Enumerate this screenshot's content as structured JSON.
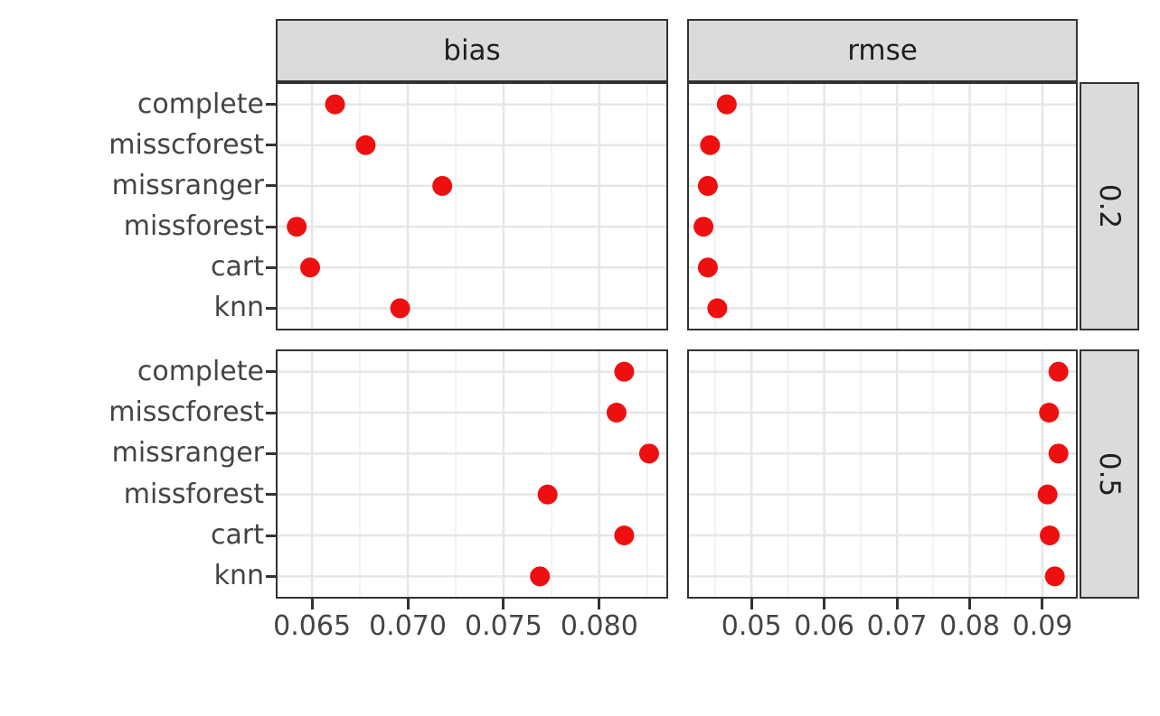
{
  "figure": {
    "background": "#FFFFFF",
    "panel_border_color": "#333333",
    "strip_background": "#DBDBDB",
    "axis_text_color": "#444444",
    "grid_major_color": "#E6E6E6",
    "grid_minor_color": "#F2F2F2"
  },
  "chart_data": {
    "type": "scatter",
    "title": "",
    "xlabel": "",
    "ylabel": "",
    "legend_position": "none",
    "grid": true,
    "point_color": "#EE1010",
    "facet_cols": [
      "bias",
      "rmse"
    ],
    "facet_rows": [
      "0.2",
      "0.5"
    ],
    "categories": [
      "complete",
      "misscforest",
      "missranger",
      "missforest",
      "cart",
      "knn"
    ],
    "x_scales": {
      "bias": {
        "xlim": [
          0.0632,
          0.0835
        ],
        "ticks": [
          0.065,
          0.07,
          0.075,
          0.08
        ],
        "tick_labels": [
          "0.065",
          "0.070",
          "0.075",
          "0.080"
        ],
        "minor_ticks": [
          0.0675,
          0.0725,
          0.0775,
          0.0825
        ]
      },
      "rmse": {
        "xlim": [
          0.0414,
          0.0946
        ],
        "ticks": [
          0.05,
          0.06,
          0.07,
          0.08,
          0.09
        ],
        "tick_labels": [
          "0.05",
          "0.06",
          "0.07",
          "0.08",
          "0.09"
        ],
        "minor_ticks": [
          0.045,
          0.055,
          0.065,
          0.075,
          0.085
        ]
      }
    },
    "series": [
      {
        "facet_row": "0.2",
        "facet_col": "bias",
        "values": [
          0.0662,
          0.0678,
          0.0718,
          0.0642,
          0.0649,
          0.0696
        ]
      },
      {
        "facet_row": "0.2",
        "facet_col": "rmse",
        "values": [
          0.0466,
          0.0443,
          0.044,
          0.0434,
          0.044,
          0.0453
        ]
      },
      {
        "facet_row": "0.5",
        "facet_col": "bias",
        "values": [
          0.0813,
          0.0809,
          0.0826,
          0.0773,
          0.0813,
          0.0769
        ]
      },
      {
        "facet_row": "0.5",
        "facet_col": "rmse",
        "values": [
          0.0922,
          0.0909,
          0.0922,
          0.0907,
          0.091,
          0.0917
        ]
      }
    ]
  }
}
